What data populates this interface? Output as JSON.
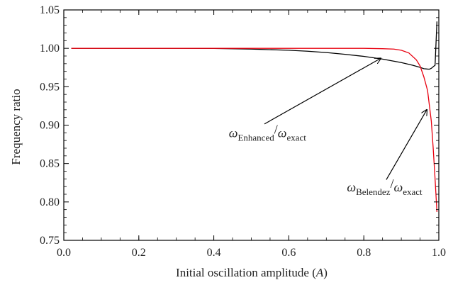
{
  "chart_data": {
    "type": "line",
    "xlabel": "Initial oscillation amplitude (A)",
    "xlabel_parts": {
      "prefix": "Initial oscillation amplitude (",
      "var": "A",
      "suffix": ")"
    },
    "ylabel": "Frequency ratio",
    "xlim": [
      0.0,
      1.0
    ],
    "ylim": [
      0.75,
      1.05
    ],
    "xticks": [
      0.0,
      0.2,
      0.4,
      0.6,
      0.8,
      1.0
    ],
    "xtick_labels": [
      "0.0",
      "0.2",
      "0.4",
      "0.6",
      "0.8",
      "1.0"
    ],
    "yticks": [
      0.75,
      0.8,
      0.85,
      0.9,
      0.95,
      1.0,
      1.05
    ],
    "ytick_labels": [
      "0.75",
      "0.80",
      "0.85",
      "0.90",
      "0.95",
      "1.00",
      "1.05"
    ],
    "grid": false,
    "series": [
      {
        "color": "#000000",
        "x": [
          0.02,
          0.1,
          0.2,
          0.3,
          0.4,
          0.5,
          0.6,
          0.65,
          0.7,
          0.75,
          0.8,
          0.85,
          0.9,
          0.93,
          0.95,
          0.96,
          0.97,
          0.975,
          0.98,
          0.985,
          0.99,
          0.995
        ],
        "y": [
          1.0,
          1.0,
          1.0,
          1.0,
          0.9998,
          0.999,
          0.9975,
          0.9962,
          0.9945,
          0.9922,
          0.9895,
          0.986,
          0.9815,
          0.978,
          0.9752,
          0.9735,
          0.973,
          0.9728,
          0.974,
          0.976,
          0.978,
          1.035
        ]
      },
      {
        "color": "#e8000f",
        "x": [
          0.02,
          0.1,
          0.2,
          0.3,
          0.4,
          0.5,
          0.6,
          0.7,
          0.8,
          0.85,
          0.88,
          0.9,
          0.92,
          0.94,
          0.95,
          0.96,
          0.97,
          0.98,
          0.985,
          0.99,
          0.995
        ],
        "y": [
          1.0,
          1.0,
          1.0,
          1.0,
          1.0,
          1.0,
          1.0,
          1.0,
          1.0,
          0.9995,
          0.999,
          0.9975,
          0.994,
          0.985,
          0.977,
          0.963,
          0.945,
          0.905,
          0.87,
          0.83,
          0.787
        ]
      }
    ],
    "annotations": [
      {
        "main": "ω",
        "sub": "Enhanced",
        "sep": "/",
        "main2": "ω",
        "sub2": "exact",
        "text_at": [
          0.44,
          0.8845
        ],
        "arrow_from": [
          0.535,
          0.9015
        ],
        "arrow_to": [
          0.845,
          0.987
        ]
      },
      {
        "main": "ω",
        "sub": "Belendez",
        "sep": "/",
        "main2": "ω",
        "sub2": "exact",
        "text_at": [
          0.755,
          0.8135
        ],
        "arrow_from": [
          0.86,
          0.829
        ],
        "arrow_to": [
          0.968,
          0.92
        ]
      }
    ]
  }
}
